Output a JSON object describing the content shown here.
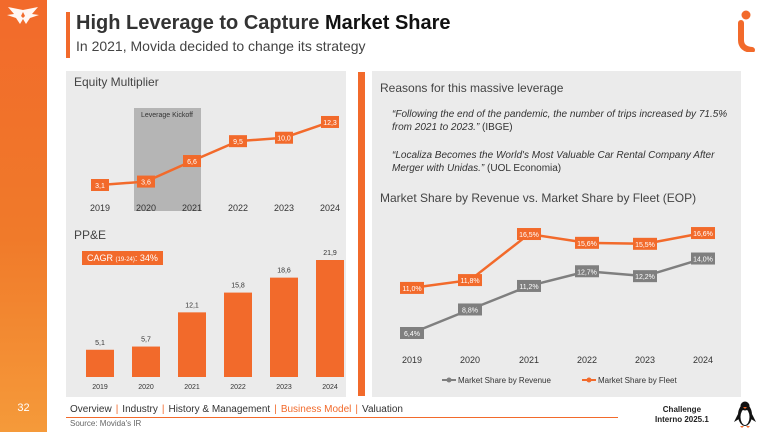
{
  "page": {
    "title_prefix": "High Leverage to Capture ",
    "title_highlight": "Market Share",
    "subtitle": "In 2021, Movida decided to change its strategy",
    "page_number": "32"
  },
  "colors": {
    "accent": "#f26a2b",
    "gray_series": "#7f7f7f",
    "panel_bg": "#ebebeb"
  },
  "icons": {
    "logo": "bird-logo-icon",
    "brand": "movida-i-icon",
    "mascot": "penguin-icon"
  },
  "equity": {
    "title": "Equity Multiplier",
    "highlight_label": "Leverage Kickoff",
    "chart_data": {
      "type": "line",
      "title": "Equity Multiplier",
      "categories": [
        "2019",
        "2020",
        "2021",
        "2022",
        "2023",
        "2024"
      ],
      "values": [
        3.1,
        3.6,
        6.6,
        9.5,
        10.0,
        12.3
      ],
      "labels": [
        "3,1",
        "3,6",
        "6,6",
        "9,5",
        "10,0",
        "12,3"
      ],
      "annotation": "Leverage Kickoff (2020–2021)"
    }
  },
  "ppe": {
    "title": "PP&E",
    "cagr_label": "CAGR",
    "cagr_period": "(19-24)",
    "cagr_value": ": 34%",
    "chart_data": {
      "type": "bar",
      "title": "PP&E",
      "categories": [
        "2019",
        "2020",
        "2021",
        "2022",
        "2023",
        "2024"
      ],
      "values": [
        5.1,
        5.7,
        12.1,
        15.8,
        18.6,
        21.9
      ],
      "labels": [
        "5,1",
        "5,7",
        "12,1",
        "15,8",
        "18,6",
        "21,9"
      ]
    }
  },
  "reasons": {
    "title": "Reasons for this massive leverage",
    "quotes": [
      {
        "text": "“Following the end of the pandemic, the number of trips increased by 71.5% from 2021 to 2023.”",
        "source": " (IBGE)"
      },
      {
        "text": "“Localiza Becomes the World's Most Valuable Car Rental Company After Merger with Unidas.”",
        "source": " (UOL Economia)"
      }
    ]
  },
  "market": {
    "title": "Market Share by Revenue vs. Market Share by Fleet (EOP)",
    "chart_data": {
      "type": "line",
      "title": "Market Share by Revenue vs. Market Share by Fleet (EOP)",
      "categories": [
        "2019",
        "2020",
        "2021",
        "2022",
        "2023",
        "2024"
      ],
      "series": [
        {
          "name": "Market Share by Revenue",
          "values": [
            6.4,
            8.8,
            11.2,
            12.7,
            12.2,
            14.0
          ],
          "labels": [
            "6,4%",
            "8,8%",
            "11,2%",
            "12,7%",
            "12,2%",
            "14,0%"
          ]
        },
        {
          "name": "Market Share by Fleet",
          "values": [
            11.0,
            11.8,
            16.5,
            15.6,
            15.5,
            16.6
          ],
          "labels": [
            "11,0%",
            "11,8%",
            "16,5%",
            "15,6%",
            "15,5%",
            "16,6%"
          ]
        }
      ],
      "legend": "bottom"
    }
  },
  "footer": {
    "nav": [
      "Overview",
      "Industry",
      "History & Management",
      "Business Model",
      "Valuation"
    ],
    "active_index": 3,
    "source": "Source: Movida's IR",
    "challenge_line1": "Challenge",
    "challenge_line2": "Interno 2025.1"
  }
}
